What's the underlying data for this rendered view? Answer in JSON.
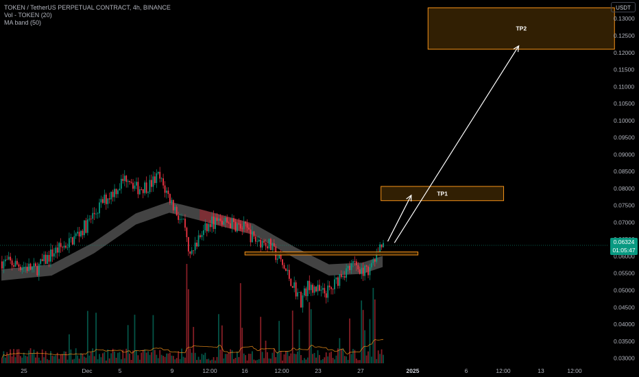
{
  "header": {
    "symbol_line": "TOKEN / TetherUS PERPETUAL CONTRACT, 4h, BINANCE",
    "indicator_vol": "Vol - TOKEN (20)",
    "indicator_ma": "MA band (50)"
  },
  "currency_badge": "USDT",
  "price_tag": {
    "price": "0.06324",
    "countdown": "01:05:47"
  },
  "colors": {
    "up": "#089981",
    "down": "#f23645",
    "band": "#5a5a5a",
    "band_red": "#8b2a32",
    "target": "#f7931a",
    "target_fill": "#3a2404",
    "arrow": "#ffffff"
  },
  "chart_data": {
    "type": "candlestick",
    "ylim": [
      0.0285,
      0.1355
    ],
    "y_ticks": [
      0.03,
      0.035,
      0.04,
      0.045,
      0.05,
      0.055,
      0.06,
      0.065,
      0.07,
      0.075,
      0.08,
      0.085,
      0.09,
      0.095,
      0.1,
      0.105,
      0.11,
      0.115,
      0.12,
      0.125,
      0.13
    ],
    "y_tick_labels": [
      "0.03000",
      "0.03500",
      "0.04000",
      "0.04500",
      "0.05000",
      "0.05500",
      "0.06000",
      "0.06500",
      "0.07000",
      "0.07500",
      "0.08000",
      "0.08500",
      "0.09000",
      "0.09500",
      "0.10000",
      "0.10500",
      "0.11000",
      "0.11500",
      "0.12000",
      "0.12500",
      "0.13000"
    ],
    "x_tick_labels": [
      "25",
      "Dec",
      "5",
      "9",
      "12:00",
      "16",
      "12:00",
      "23",
      "27",
      "2025",
      "6",
      "12:00",
      "13",
      "12:00"
    ],
    "x_tick_bold": [
      "2025"
    ],
    "price_anchors": [
      {
        "t": 0,
        "p": 0.0585
      },
      {
        "t": 10,
        "p": 0.0575
      },
      {
        "t": 20,
        "p": 0.056
      },
      {
        "t": 30,
        "p": 0.061
      },
      {
        "t": 40,
        "p": 0.064
      },
      {
        "t": 50,
        "p": 0.069
      },
      {
        "t": 60,
        "p": 0.076
      },
      {
        "t": 70,
        "p": 0.081
      },
      {
        "t": 75,
        "p": 0.084
      },
      {
        "t": 80,
        "p": 0.08
      },
      {
        "t": 88,
        "p": 0.081
      },
      {
        "t": 93,
        "p": 0.0835
      },
      {
        "t": 100,
        "p": 0.077
      },
      {
        "t": 108,
        "p": 0.069
      },
      {
        "t": 112,
        "p": 0.06
      },
      {
        "t": 118,
        "p": 0.066
      },
      {
        "t": 125,
        "p": 0.07
      },
      {
        "t": 135,
        "p": 0.07
      },
      {
        "t": 145,
        "p": 0.068
      },
      {
        "t": 150,
        "p": 0.065
      },
      {
        "t": 158,
        "p": 0.064
      },
      {
        "t": 165,
        "p": 0.059
      },
      {
        "t": 172,
        "p": 0.053
      },
      {
        "t": 178,
        "p": 0.047
      },
      {
        "t": 183,
        "p": 0.052
      },
      {
        "t": 190,
        "p": 0.049
      },
      {
        "t": 196,
        "p": 0.05
      },
      {
        "t": 202,
        "p": 0.055
      },
      {
        "t": 210,
        "p": 0.0575
      },
      {
        "t": 217,
        "p": 0.0555
      },
      {
        "t": 222,
        "p": 0.06
      },
      {
        "t": 227,
        "p": 0.063
      }
    ],
    "ma_band": [
      {
        "t": 0,
        "p": 0.0545
      },
      {
        "t": 30,
        "p": 0.056
      },
      {
        "t": 55,
        "p": 0.0625
      },
      {
        "t": 80,
        "p": 0.071
      },
      {
        "t": 100,
        "p": 0.0745
      },
      {
        "t": 120,
        "p": 0.072
      },
      {
        "t": 150,
        "p": 0.068
      },
      {
        "t": 175,
        "p": 0.061
      },
      {
        "t": 195,
        "p": 0.056
      },
      {
        "t": 215,
        "p": 0.0565
      },
      {
        "t": 227,
        "p": 0.0585
      }
    ],
    "band_width": 0.0033,
    "zones": [
      {
        "label": "",
        "low": 0.0604,
        "high": 0.0613,
        "t_start": 145,
        "t_end": 248
      },
      {
        "label": "TP1",
        "low": 0.0764,
        "high": 0.0806,
        "t_start": 226,
        "t_end": 299
      },
      {
        "label": "TP2",
        "low": 0.121,
        "high": 0.1332,
        "t_start": 254,
        "t_end": 365
      }
    ],
    "arrows": [
      {
        "from": {
          "t": 230,
          "p": 0.0644
        },
        "to": {
          "t": 244,
          "p": 0.078
        }
      },
      {
        "from": {
          "t": 234,
          "p": 0.064
        },
        "to": {
          "t": 308,
          "p": 0.122
        }
      }
    ],
    "current_price": 0.06324
  }
}
